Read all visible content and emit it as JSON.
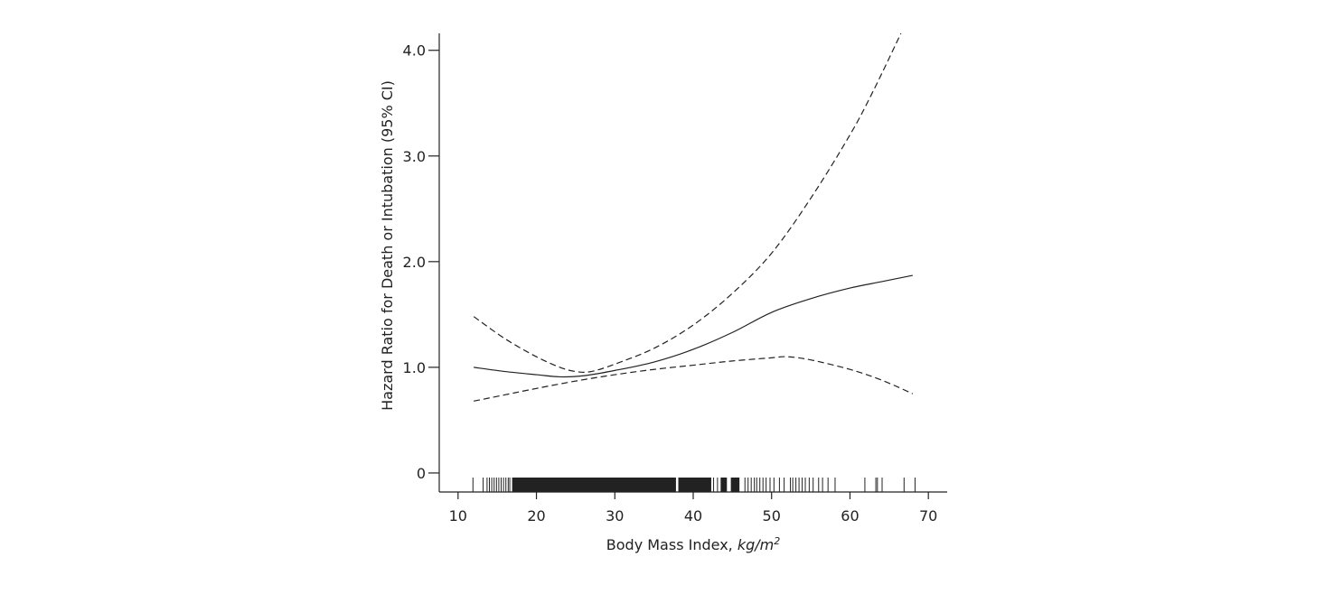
{
  "chart_data": {
    "type": "line",
    "title": "",
    "xlabel": "Body Mass Index, ",
    "xlabel_unit": "kg/m",
    "xlabel_unit_sup": "2",
    "ylabel": "Hazard Ratio for Death or Intubation (95% CI)",
    "xlim": [
      7.6,
      72.4
    ],
    "ylim": [
      -0.18,
      4.16
    ],
    "x_ticks": [
      10,
      20,
      30,
      40,
      50,
      60,
      70
    ],
    "x_tick_labels": [
      "10",
      "20",
      "30",
      "40",
      "50",
      "60",
      "70"
    ],
    "y_ticks": [
      0,
      1,
      2,
      3,
      4
    ],
    "y_tick_labels": [
      "0",
      "1.0",
      "2.0",
      "3.0",
      "4.0"
    ],
    "grid": false,
    "series": [
      {
        "style": "solid",
        "x": [
          12,
          16,
          20,
          23,
          26,
          30,
          35,
          40,
          45,
          50,
          55,
          60,
          64,
          68
        ],
        "y": [
          1.0,
          0.96,
          0.93,
          0.91,
          0.92,
          0.97,
          1.05,
          1.17,
          1.33,
          1.52,
          1.65,
          1.75,
          1.81,
          1.87
        ]
      },
      {
        "style": "dashed",
        "x": [
          12,
          16,
          20,
          23,
          25,
          27,
          30,
          35,
          40,
          45,
          50,
          55,
          60,
          63,
          66.5
        ],
        "y": [
          1.48,
          1.27,
          1.1,
          1.0,
          0.96,
          0.96,
          1.03,
          1.18,
          1.4,
          1.7,
          2.08,
          2.6,
          3.2,
          3.62,
          4.16
        ]
      },
      {
        "style": "dashed",
        "x": [
          12,
          16,
          20,
          25,
          30,
          35,
          40,
          45,
          50,
          52,
          55,
          60,
          64,
          68
        ],
        "y": [
          0.68,
          0.74,
          0.8,
          0.87,
          0.93,
          0.98,
          1.02,
          1.06,
          1.09,
          1.1,
          1.07,
          0.98,
          0.88,
          0.75
        ]
      }
    ],
    "rug": {
      "ticks": [
        11.9,
        13.2,
        13.7,
        14.0,
        14.3,
        14.6,
        14.9,
        15.2,
        15.5,
        15.8,
        16.1,
        16.4,
        16.6,
        42.6,
        43.1,
        46.6,
        47.0,
        47.4,
        47.8,
        48.1,
        48.5,
        48.9,
        49.3,
        49.8,
        50.3,
        51.0,
        51.6,
        52.4,
        52.7,
        53.1,
        53.5,
        53.9,
        54.3,
        54.8,
        55.3,
        56.0,
        56.5,
        57.2,
        58.1,
        61.9,
        63.3,
        63.5,
        64.1,
        66.9,
        68.3
      ],
      "blocks": [
        [
          16.9,
          37.8
        ],
        [
          38.1,
          42.3
        ],
        [
          43.5,
          44.3
        ],
        [
          44.8,
          45.9
        ]
      ]
    }
  }
}
